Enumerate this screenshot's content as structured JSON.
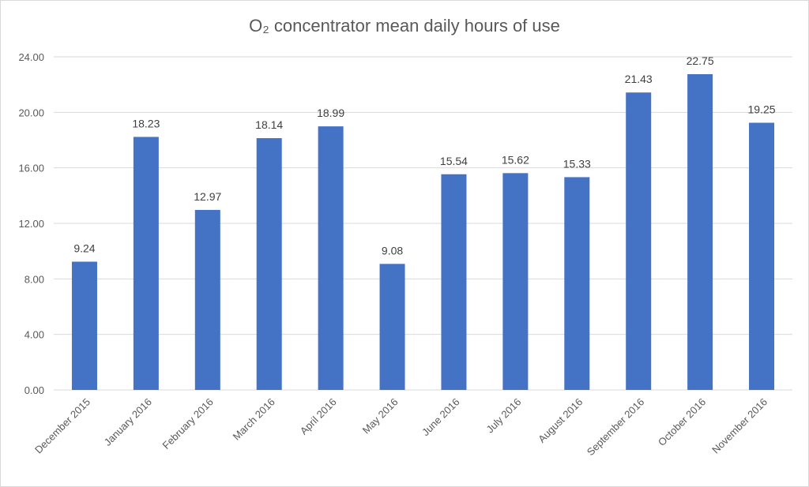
{
  "chart_data": {
    "type": "bar",
    "title": "O₂ concentrator mean daily hours of use",
    "xlabel": "",
    "ylabel": "",
    "ylim": [
      0,
      24
    ],
    "yticks": [
      "0.00",
      "4.00",
      "8.00",
      "12.00",
      "16.00",
      "20.00",
      "24.00"
    ],
    "grid": true,
    "bar_color": "#4472C4",
    "categories": [
      "December 2015",
      "January 2016",
      "February 2016",
      "March 2016",
      "April 2016",
      "May 2016",
      "June 2016",
      "July 2016",
      "August 2016",
      "September 2016",
      "October 2016",
      "November 2016"
    ],
    "values": [
      9.24,
      18.23,
      12.97,
      18.14,
      18.99,
      9.08,
      15.54,
      15.62,
      15.33,
      21.43,
      22.75,
      19.25
    ],
    "data_labels": [
      "9.24",
      "18.23",
      "12.97",
      "18.14",
      "18.99",
      "9.08",
      "15.54",
      "15.62",
      "15.33",
      "21.43",
      "22.75",
      "19.25"
    ]
  }
}
